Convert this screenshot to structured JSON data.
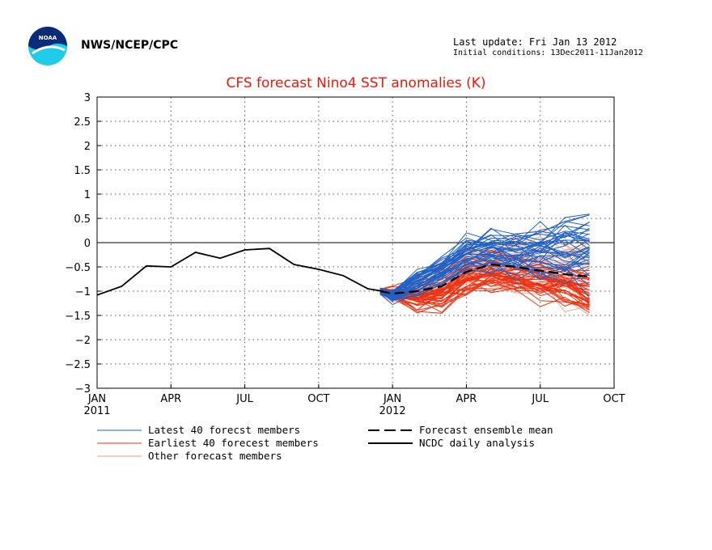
{
  "header": {
    "org": "NWS/NCEP/CPC",
    "last_update": "Last update: Fri Jan 13 2012",
    "initial_conditions": "Initial conditions: 13Dec2011-11Jan2012",
    "logo_text": "NOAA"
  },
  "chart_data": {
    "type": "line",
    "title": "CFS forecast Nino4 SST anomalies (K)",
    "xlabel": "",
    "ylabel": "",
    "ylim": [
      -3,
      3
    ],
    "yticks": [
      3,
      2.5,
      2,
      1.5,
      1,
      0.5,
      0,
      -0.5,
      -1,
      -1.5,
      -2,
      -2.5,
      -3
    ],
    "ytick_labels": [
      "3",
      "2.5",
      "2",
      "1.5",
      "1",
      "0.5",
      "0",
      "−0.5",
      "−1",
      "−1.5",
      "−2",
      "−2.5",
      "−3"
    ],
    "xlim_months": [
      0,
      21
    ],
    "xticks": [
      {
        "m": 0,
        "label": "JAN",
        "year": "2011"
      },
      {
        "m": 3,
        "label": "APR",
        "year": ""
      },
      {
        "m": 6,
        "label": "JUL",
        "year": ""
      },
      {
        "m": 9,
        "label": "OCT",
        "year": ""
      },
      {
        "m": 12,
        "label": "JAN",
        "year": "2012"
      },
      {
        "m": 15,
        "label": "APR",
        "year": ""
      },
      {
        "m": 18,
        "label": "JUL",
        "year": ""
      },
      {
        "m": 21,
        "label": "OCT",
        "year": ""
      }
    ],
    "grid": true,
    "zero_line": true,
    "analysis": {
      "name": "NCDC daily analysis",
      "x": [
        0,
        1,
        2,
        3,
        4,
        5,
        6,
        7,
        8,
        9,
        10,
        11,
        11.6
      ],
      "y": [
        -1.08,
        -0.9,
        -0.48,
        -0.5,
        -0.2,
        -0.32,
        -0.15,
        -0.12,
        -0.45,
        -0.55,
        -0.68,
        -0.95,
        -1.0
      ]
    },
    "ensemble_mean": {
      "name": "Forecast ensemble mean",
      "x": [
        11.5,
        12,
        13,
        14,
        15,
        16,
        17,
        18,
        19,
        20
      ],
      "y": [
        -1.0,
        -1.05,
        -1.0,
        -0.9,
        -0.6,
        -0.45,
        -0.5,
        -0.58,
        -0.65,
        -0.7
      ]
    },
    "members": {
      "x": [
        11.5,
        12,
        13,
        14,
        15,
        16,
        17,
        18,
        19,
        20
      ],
      "latest": {
        "name": "Latest 40 forecst members",
        "color": "#1f62c8",
        "count": 40,
        "mean": [
          -1.0,
          -1.1,
          -0.85,
          -0.6,
          -0.3,
          -0.2,
          -0.25,
          -0.2,
          -0.2,
          -0.15
        ],
        "spread": [
          0.05,
          0.1,
          0.2,
          0.25,
          0.3,
          0.35,
          0.4,
          0.45,
          0.5,
          0.55
        ]
      },
      "earliest": {
        "name": "Earliest 40 forecest members",
        "color": "#ee3212",
        "count": 40,
        "mean": [
          -1.0,
          -1.05,
          -1.15,
          -1.05,
          -0.75,
          -0.65,
          -0.7,
          -0.8,
          -0.95,
          -1.05
        ],
        "spread": [
          0.05,
          0.1,
          0.25,
          0.35,
          0.35,
          0.35,
          0.35,
          0.4,
          0.4,
          0.42
        ]
      },
      "other": {
        "name": "Other forecast members",
        "color": "#e89a86",
        "count": 40,
        "mean": [
          -1.0,
          -1.08,
          -0.95,
          -0.8,
          -0.5,
          -0.45,
          -0.45,
          -0.45,
          -0.55,
          -0.6
        ],
        "spread": [
          0.05,
          0.1,
          0.22,
          0.3,
          0.3,
          0.35,
          0.4,
          0.45,
          0.45,
          0.5
        ]
      }
    },
    "legend": [
      {
        "label": "Latest 40 forecst members",
        "style": "line",
        "color": "#1f62c8"
      },
      {
        "label": "Earliest 40 forecest members",
        "style": "line",
        "color": "#ee3212"
      },
      {
        "label": "Other forecast members",
        "style": "line",
        "color": "#e89a86"
      },
      {
        "label": "Forecast ensemble mean",
        "style": "dashed",
        "color": "#000000"
      },
      {
        "label": "NCDC daily analysis",
        "style": "solid",
        "color": "#000000"
      }
    ]
  }
}
